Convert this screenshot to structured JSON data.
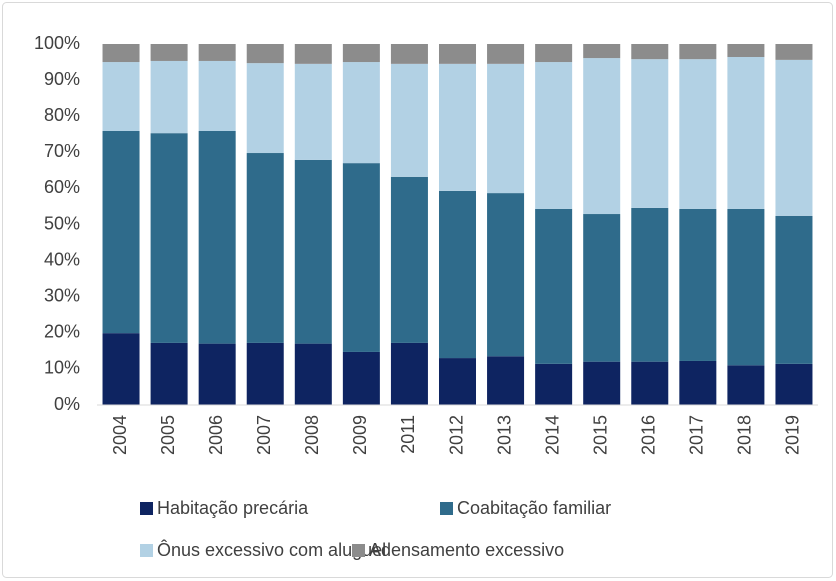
{
  "chart_data": {
    "type": "stacked_bar",
    "categories": [
      "2004",
      "2005",
      "2006",
      "2007",
      "2008",
      "2009",
      "2011",
      "2012",
      "2013",
      "2014",
      "2015",
      "2016",
      "2017",
      "2018",
      "2019"
    ],
    "series": [
      {
        "name": "Habitação precária",
        "color": "#0e2461",
        "values": [
          19.9,
          17.2,
          17.0,
          17.2,
          17.0,
          14.7,
          17.2,
          13.0,
          13.5,
          11.4,
          12.0,
          12.0,
          12.2,
          11.0,
          11.4
        ]
      },
      {
        "name": "Coabitação familiar",
        "color": "#2f6b8b",
        "values": [
          56.0,
          58.1,
          58.9,
          52.6,
          50.9,
          52.3,
          46.0,
          46.3,
          45.2,
          42.9,
          40.9,
          42.6,
          42.1,
          43.3,
          41.0
        ]
      },
      {
        "name": "Ônus excessivo com aluguel",
        "color": "#b2d1e4",
        "values": [
          19.1,
          20.0,
          19.4,
          24.9,
          26.6,
          28.0,
          31.3,
          35.2,
          35.8,
          40.7,
          43.2,
          41.2,
          41.5,
          42.1,
          43.2
        ]
      },
      {
        "name": "Adensamento excessivo",
        "color": "#8c8c8c",
        "values": [
          5.0,
          4.7,
          4.7,
          5.3,
          5.5,
          5.0,
          5.5,
          5.5,
          5.5,
          5.0,
          3.9,
          4.2,
          4.2,
          3.6,
          4.4
        ]
      }
    ],
    "ylim": [
      0,
      100
    ],
    "yticks": [
      {
        "value": 0,
        "label": "0%"
      },
      {
        "value": 10,
        "label": "10%"
      },
      {
        "value": 20,
        "label": "20%"
      },
      {
        "value": 30,
        "label": "30%"
      },
      {
        "value": 40,
        "label": "40%"
      },
      {
        "value": 50,
        "label": "50%"
      },
      {
        "value": 60,
        "label": "60%"
      },
      {
        "value": 70,
        "label": "70%"
      },
      {
        "value": 80,
        "label": "80%"
      },
      {
        "value": 90,
        "label": "90%"
      },
      {
        "value": 100,
        "label": "100%"
      }
    ],
    "grid": false
  }
}
